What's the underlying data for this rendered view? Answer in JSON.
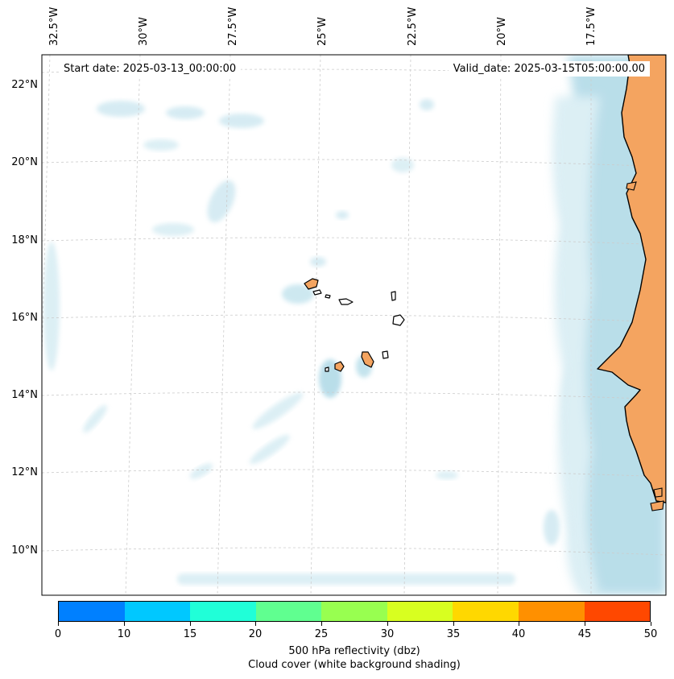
{
  "map": {
    "start_date": "Start date: 2025-03-13_00:00:00",
    "valid_date": "Valid_date: 2025-03-15T05:00:00.00",
    "longitude_labels": [
      "32.5°W",
      "30°W",
      "27.5°W",
      "25°W",
      "22.5°W",
      "20°W",
      "17.5°W"
    ],
    "latitude_labels": [
      "22°N",
      "20°N",
      "18°N",
      "16°N",
      "14°N",
      "12°N",
      "10°N"
    ],
    "gridlines": true,
    "land_color": "#f4a460",
    "cloud_color": "#add8e6",
    "ocean_color": "#ffffff",
    "coastline_color": "#000000"
  },
  "colorbar": {
    "label": "500 hPa reflectivity (dbz)",
    "sublabel": "Cloud cover (white background shading)",
    "ticks": [
      "0",
      "10",
      "15",
      "20",
      "25",
      "30",
      "35",
      "40",
      "45",
      "50"
    ],
    "colors": [
      "#0080ff",
      "#00c8ff",
      "#20ffd8",
      "#60ff90",
      "#98ff50",
      "#d8ff20",
      "#ffd800",
      "#ff9000",
      "#ff4800"
    ]
  }
}
